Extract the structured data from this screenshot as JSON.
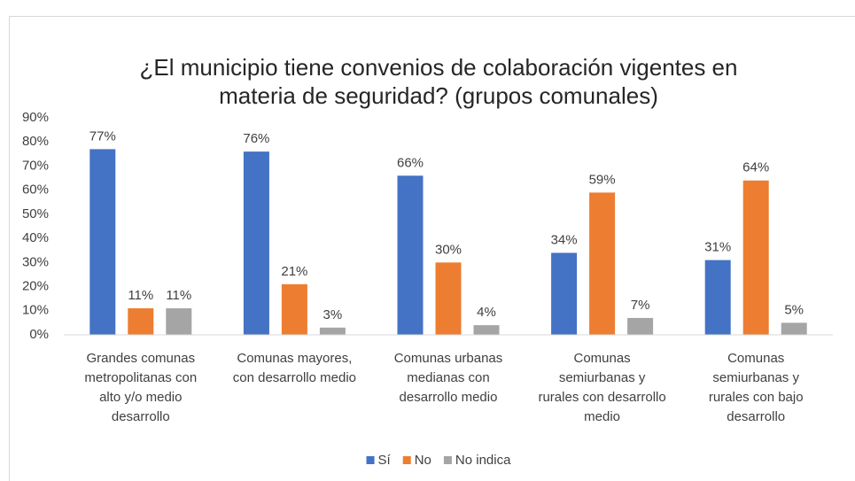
{
  "chart_data": {
    "type": "bar",
    "title": [
      "¿El municipio tiene convenios de colaboración vigentes en",
      "materia de seguridad? (grupos comunales)"
    ],
    "categories": [
      [
        "Grandes comunas",
        "metropolitanas con",
        "alto y/o medio",
        "desarrollo"
      ],
      [
        "Comunas mayores,",
        "con desarrollo medio"
      ],
      [
        "Comunas urbanas",
        "medianas con",
        "desarrollo medio"
      ],
      [
        "Comunas",
        "semiurbanas y",
        "rurales con desarrollo",
        "medio"
      ],
      [
        "Comunas",
        "semiurbanas y",
        "rurales con bajo",
        "desarrollo"
      ]
    ],
    "series": [
      {
        "name": "Sí",
        "color": "#4472c4",
        "values": [
          77,
          76,
          66,
          34,
          31
        ],
        "value_labels": [
          "77%",
          "76%",
          "66%",
          "34%",
          "31%"
        ]
      },
      {
        "name": "No",
        "color": "#ed7d31",
        "values": [
          11,
          21,
          30,
          59,
          64
        ],
        "value_labels": [
          "11%",
          "21%",
          "30%",
          "59%",
          "64%"
        ]
      },
      {
        "name": "No indica",
        "color": "#a5a5a5",
        "values": [
          11,
          3,
          4,
          7,
          5
        ],
        "value_labels": [
          "11%",
          "3%",
          "4%",
          "7%",
          "5%"
        ]
      }
    ],
    "ylim": [
      0,
      90
    ],
    "yticks": [
      {
        "value": 0,
        "label": "0%"
      },
      {
        "value": 10,
        "label": "10%"
      },
      {
        "value": 20,
        "label": "20%"
      },
      {
        "value": 30,
        "label": "30%"
      },
      {
        "value": 40,
        "label": "40%"
      },
      {
        "value": 50,
        "label": "50%"
      },
      {
        "value": 60,
        "label": "60%"
      },
      {
        "value": 70,
        "label": "70%"
      },
      {
        "value": 80,
        "label": "80%"
      },
      {
        "value": 90,
        "label": "90%"
      }
    ],
    "grid": false,
    "legend": "bottom"
  }
}
